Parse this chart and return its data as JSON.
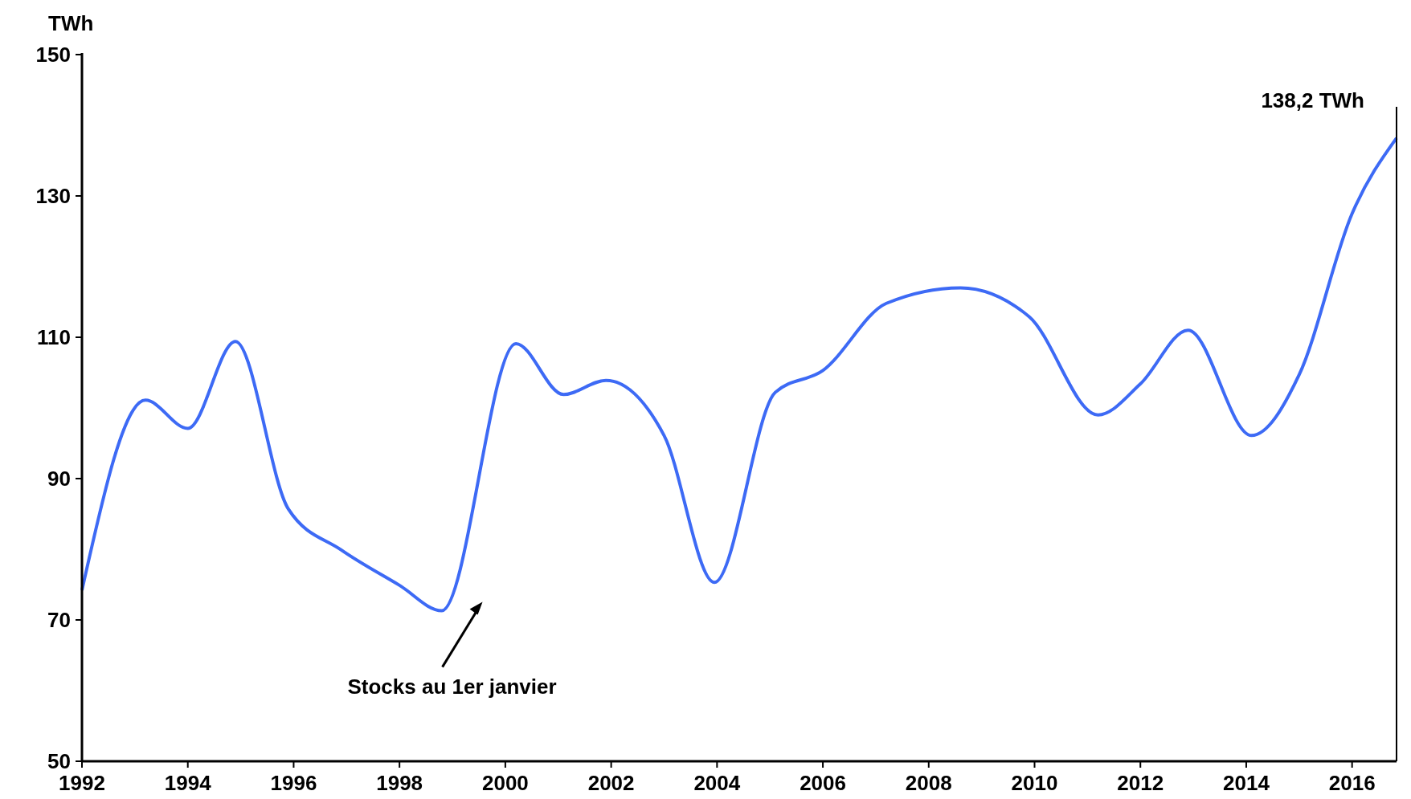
{
  "chart_data": {
    "type": "line",
    "ylabel": "TWh",
    "x": [
      1992,
      1993.2,
      1994,
      1994.9,
      1995.9,
      1996.9,
      1998,
      1998.8,
      2000.2,
      2001.1,
      2001.9,
      2003,
      2003.95,
      2005.1,
      2006,
      2007.2,
      2008.6,
      2009.9,
      2011.2,
      2012,
      2012.9,
      2014.1,
      2015,
      2016,
      2016.84
    ],
    "series": [
      {
        "color": "#3d6af5",
        "values": [
          74.2,
          101.1,
          97.1,
          109.4,
          85.7,
          79.9,
          74.9,
          71.3,
          109.1,
          101.9,
          103.9,
          96.1,
          75.3,
          102.2,
          105.3,
          114.8,
          117,
          112.9,
          99,
          103.4,
          111,
          96.1,
          104.7,
          127.5,
          138.2
        ]
      }
    ],
    "xlim": [
      1992,
      2016.84
    ],
    "xticks": [
      1992,
      1994,
      1996,
      1998,
      2000,
      2002,
      2004,
      2006,
      2008,
      2010,
      2012,
      2014,
      2016
    ],
    "ylim": [
      50,
      150
    ],
    "yticks": [
      50,
      70,
      90,
      110,
      130,
      150
    ],
    "grid": false,
    "marker": "none",
    "line_style": "solid",
    "annotations": [
      {
        "text": "138,2 TWh",
        "x": 2016.84,
        "y": 138.2
      },
      "Stocks au 1er janvier"
    ]
  }
}
